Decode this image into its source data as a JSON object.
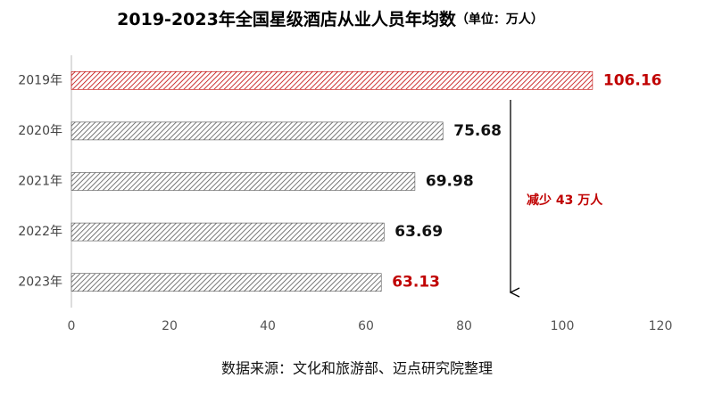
{
  "chart_data": {
    "type": "hbar",
    "title": "2019-2023年全国星级酒店从业人员年均数",
    "subtitle": "（单位：万人）",
    "categories": [
      "2019年",
      "2020年",
      "2021年",
      "2022年",
      "2023年"
    ],
    "values": [
      106.16,
      75.68,
      69.98,
      63.69,
      63.13
    ],
    "colors": [
      "#c00000",
      "#555555",
      "#555555",
      "#555555",
      "#555555"
    ],
    "label_colors": [
      "#c00000",
      "#111111",
      "#111111",
      "#111111",
      "#c00000"
    ],
    "xlim": [
      0,
      120
    ],
    "xticks": [
      0,
      20,
      40,
      60,
      80,
      100,
      120
    ],
    "annotation": "减少 43 万人",
    "annotation_color": "#c00000",
    "source": "数据来源：文化和旅游部、迈点研究院整理"
  }
}
